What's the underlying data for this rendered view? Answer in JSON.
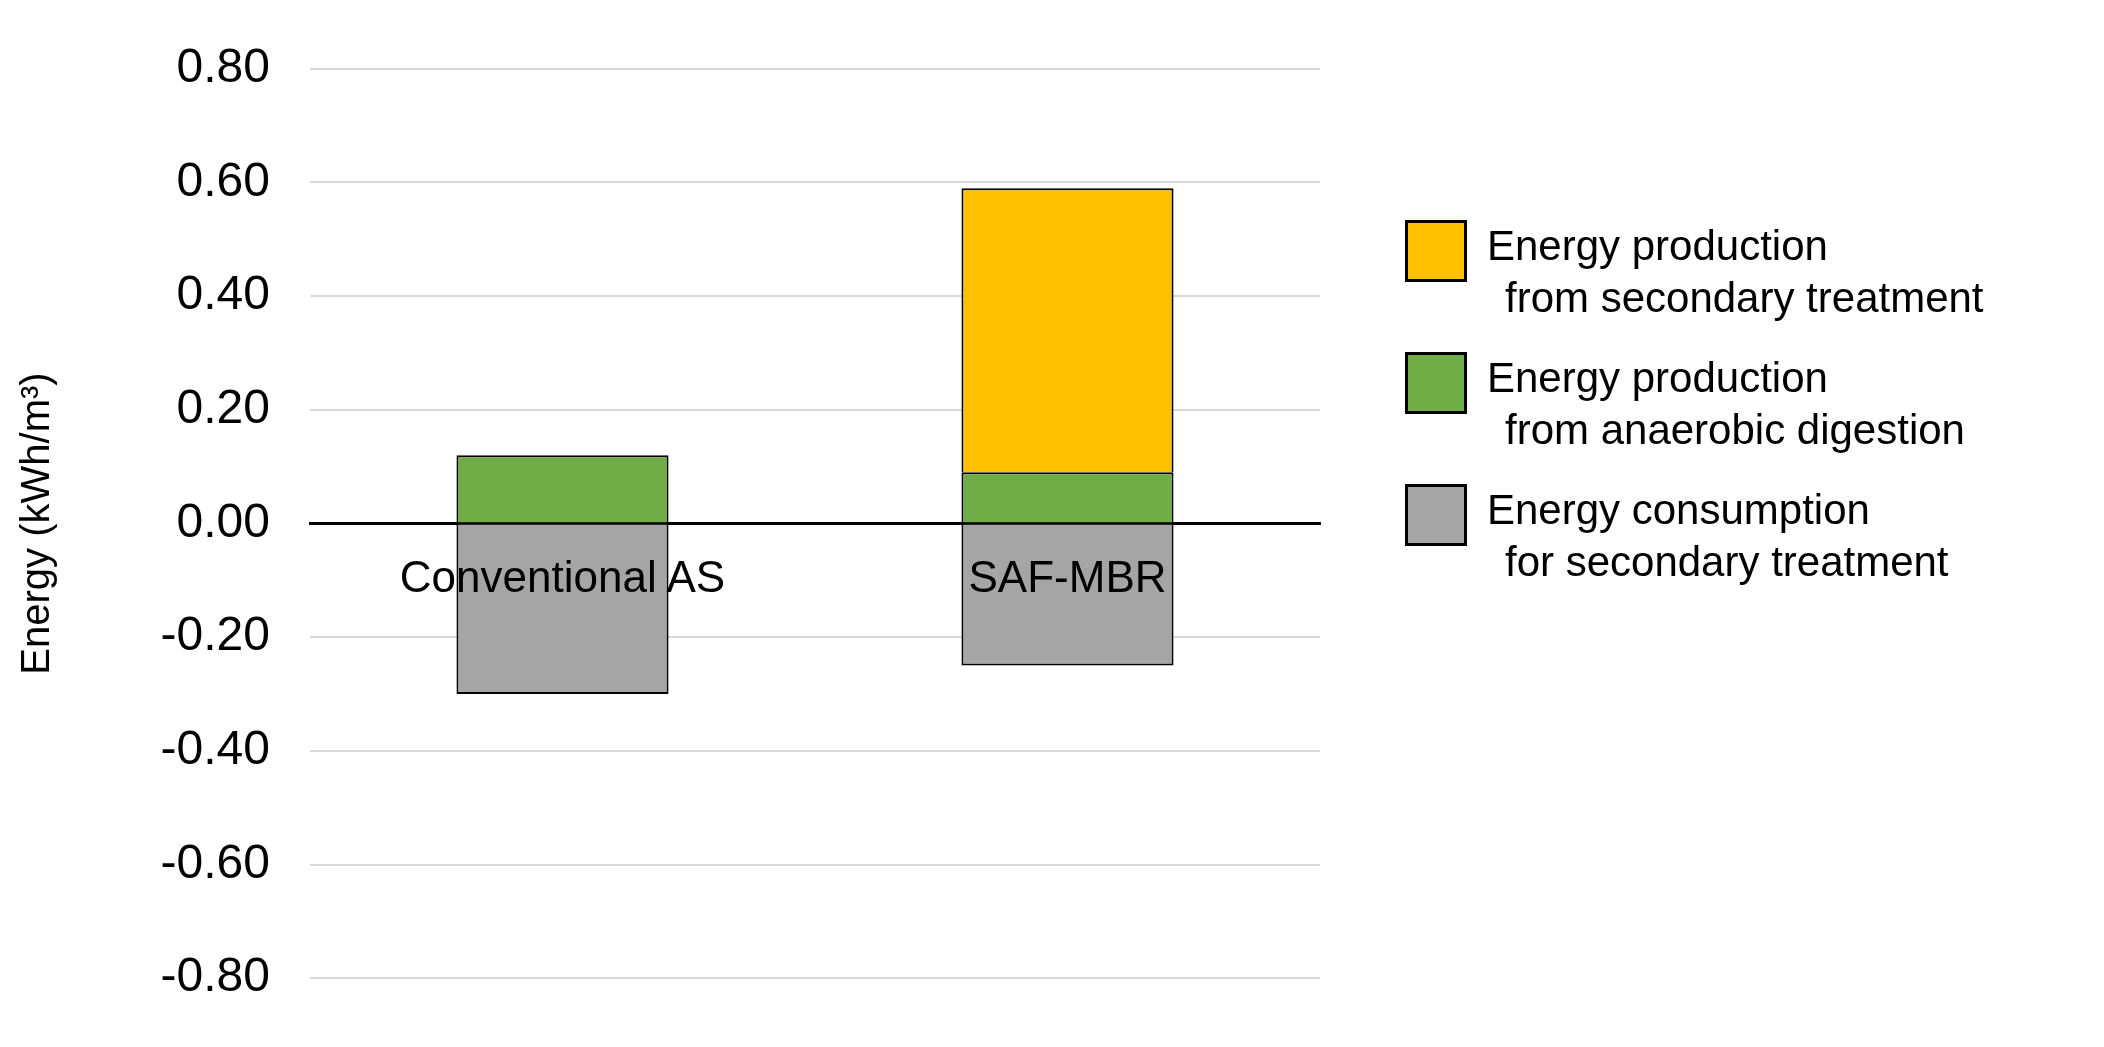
{
  "chart_data": {
    "type": "bar",
    "ylabel": "Energy (kWh/m³)",
    "categories": [
      "Conventional AS",
      "SAF-MBR"
    ],
    "stacked": true,
    "legend": "right",
    "grid": "y",
    "ylim": [
      -0.8,
      0.8
    ],
    "yticks": [
      {
        "value": -0.8,
        "label": "-0.80"
      },
      {
        "value": -0.6,
        "label": "-0.60"
      },
      {
        "value": -0.4,
        "label": "-0.40"
      },
      {
        "value": -0.2,
        "label": "-0.20"
      },
      {
        "value": 0,
        "label": "0.00"
      },
      {
        "value": 0.2,
        "label": "0.20"
      },
      {
        "value": 0.4,
        "label": "0.40"
      },
      {
        "value": 0.6,
        "label": "0.60"
      },
      {
        "value": 0.8,
        "label": "0.80"
      }
    ],
    "series": [
      {
        "name": "Energy consumption for secondary treatment",
        "color": "#a5a5a5",
        "values": [
          -0.3,
          -0.25
        ]
      },
      {
        "name": "Energy production from anaerobic digestion",
        "color": "#70ad47",
        "values": [
          0.12,
          0.09
        ]
      },
      {
        "name": "Energy production from secondary treatment",
        "color": "#ffc000",
        "values": [
          null,
          0.5
        ]
      }
    ]
  }
}
